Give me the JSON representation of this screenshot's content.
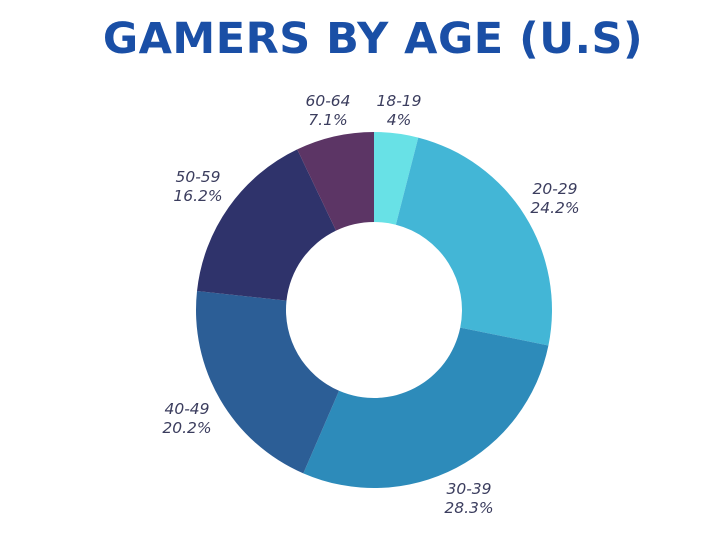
{
  "chart_data": {
    "type": "pie",
    "variant": "donut",
    "title": "GAMERS BY AGE (U.S)",
    "start": "top",
    "direction": "clockwise",
    "slices": [
      {
        "label": "18-19",
        "value": 4,
        "value_label": "4%",
        "color": "#68e1e6"
      },
      {
        "label": "20-29",
        "value": 24.2,
        "value_label": "24.2%",
        "color": "#43b6d6"
      },
      {
        "label": "30-39",
        "value": 28.3,
        "value_label": "28.3%",
        "color": "#2d8bba"
      },
      {
        "label": "40-49",
        "value": 20.2,
        "value_label": "20.2%",
        "color": "#2c5e96"
      },
      {
        "label": "50-59",
        "value": 16.2,
        "value_label": "16.2%",
        "color": "#2f336b"
      },
      {
        "label": "60-64",
        "value": 7.1,
        "value_label": "7.1%",
        "color": "#5c3565"
      }
    ]
  }
}
